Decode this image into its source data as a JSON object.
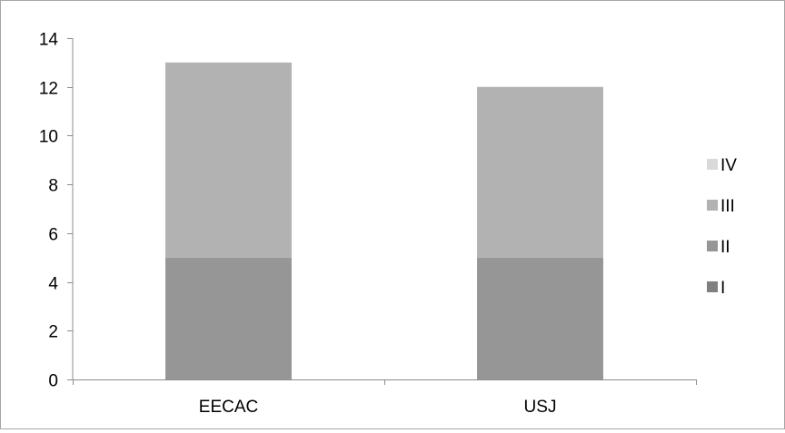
{
  "chart_data": {
    "type": "bar",
    "stacked": true,
    "categories": [
      "EECAC",
      "USJ"
    ],
    "series": [
      {
        "name": "I",
        "values": [
          0,
          0
        ],
        "color": "#808080"
      },
      {
        "name": "II",
        "values": [
          5,
          5
        ],
        "color": "#969696"
      },
      {
        "name": "III",
        "values": [
          8,
          7
        ],
        "color": "#b2b2b2"
      },
      {
        "name": "IV",
        "values": [
          0,
          0
        ],
        "color": "#d9d9d9"
      }
    ],
    "title": "",
    "xlabel": "",
    "ylabel": "",
    "ylim": [
      0,
      14
    ],
    "yticks": [
      "0",
      "2",
      "4",
      "6",
      "8",
      "10",
      "12",
      "14"
    ],
    "grid": false,
    "legend": {
      "position": "right",
      "order": [
        "IV",
        "III",
        "II",
        "I"
      ]
    }
  }
}
